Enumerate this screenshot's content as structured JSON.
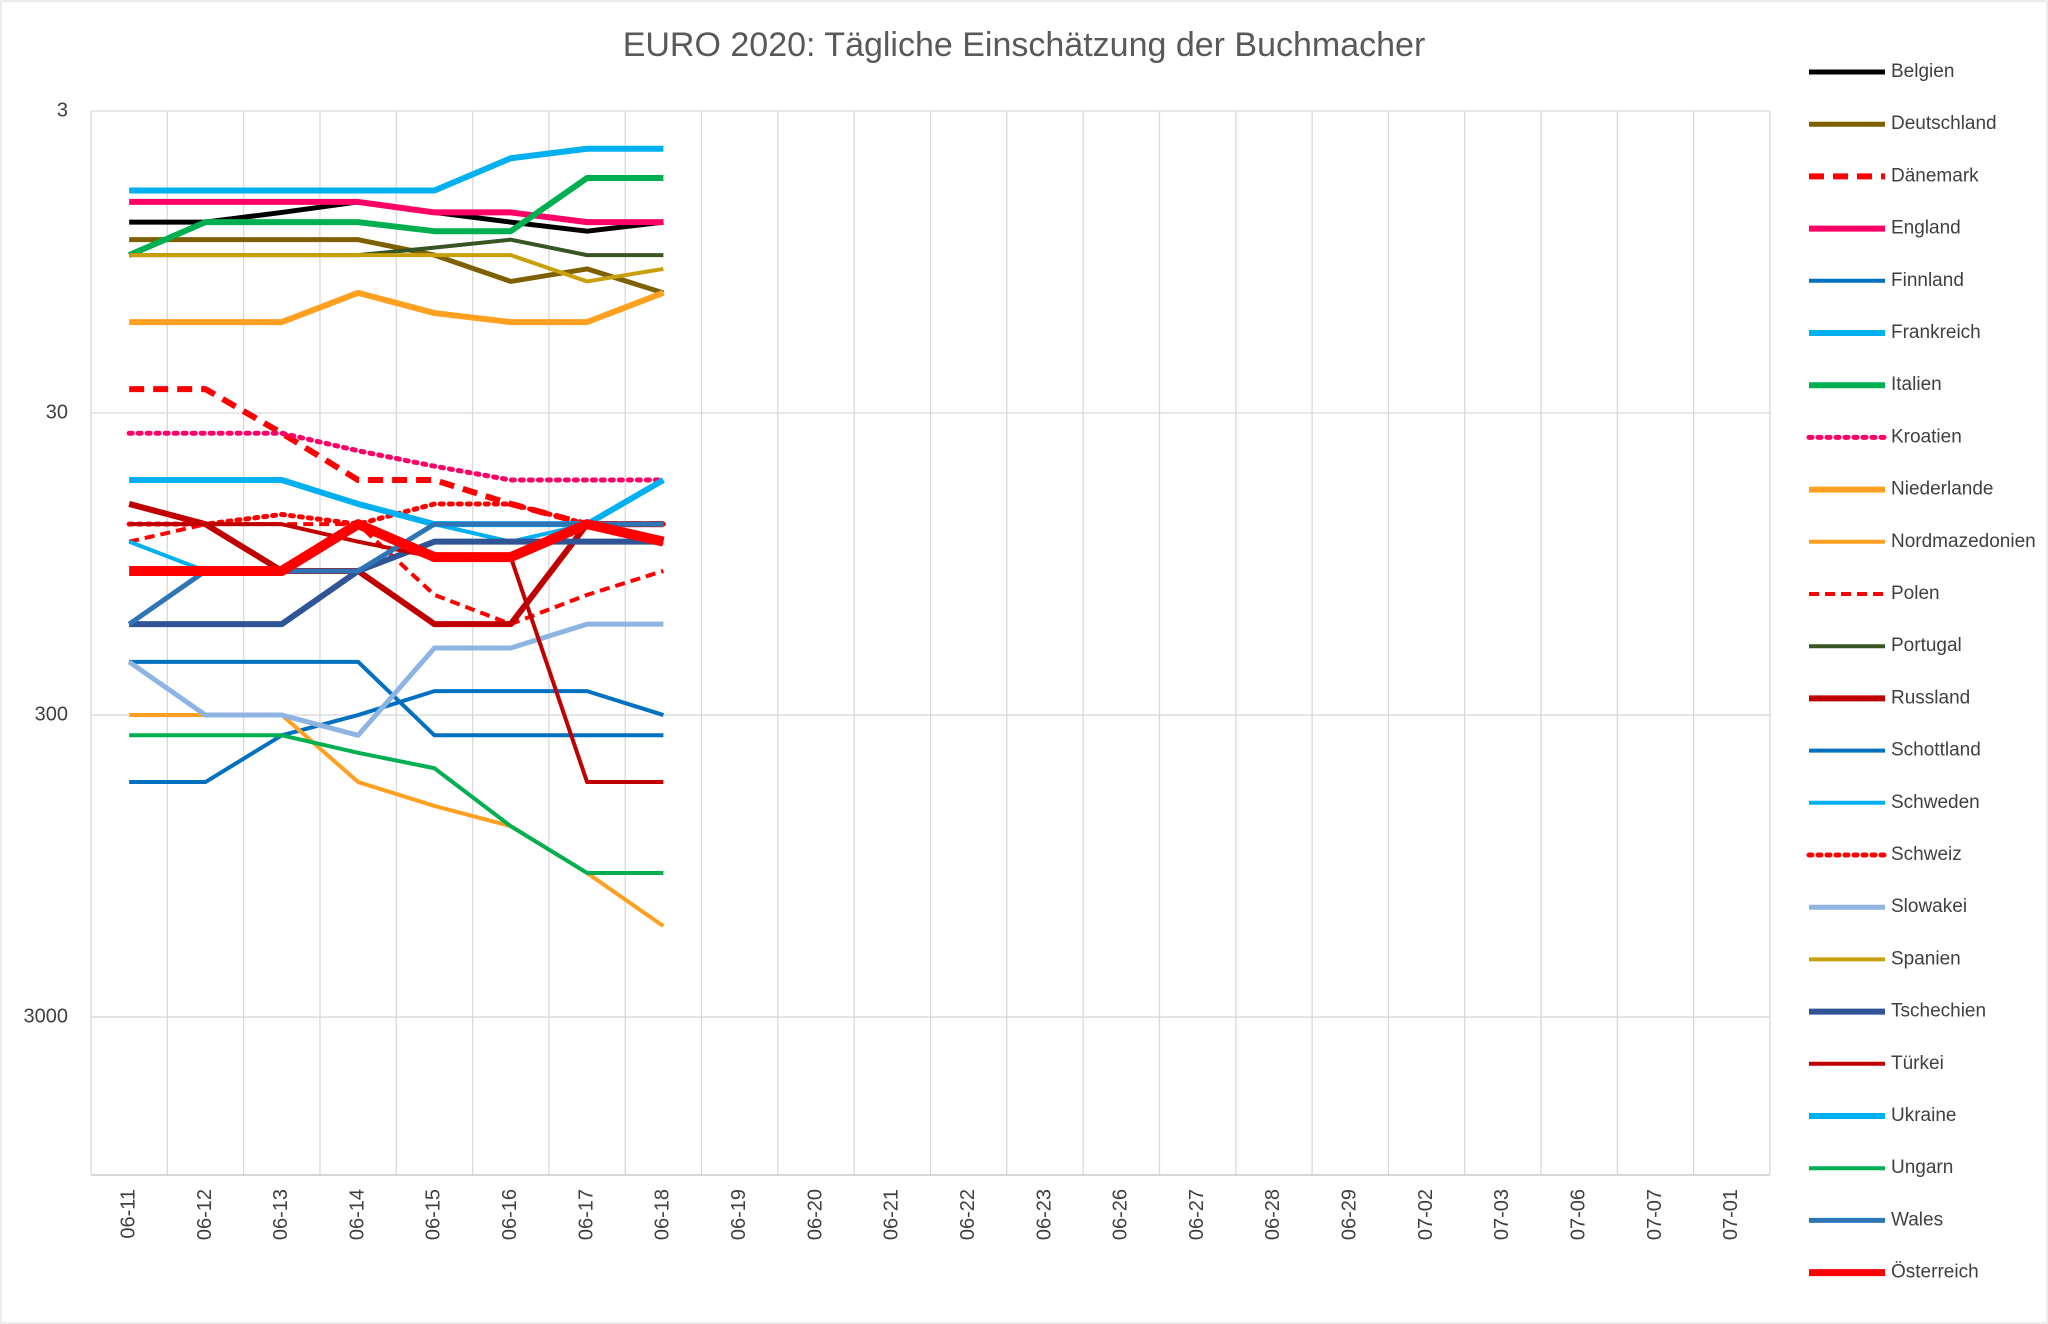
{
  "chart_data": {
    "type": "line",
    "title": "EURO 2020: Tägliche Einschätzung der Buchmacher",
    "categories": [
      "06-11",
      "06-12",
      "06-13",
      "06-14",
      "06-15",
      "06-16",
      "06-17",
      "06-18",
      "06-19",
      "06-20",
      "06-21",
      "06-22",
      "06-23",
      "06-26",
      "06-27",
      "06-28",
      "06-29",
      "07-02",
      "07-03",
      "07-06",
      "07-07",
      "07-01"
    ],
    "ylim": [
      3,
      10000
    ],
    "yticks": [
      3,
      30,
      300,
      3000
    ],
    "log_scale": true,
    "y_reversed": true,
    "grid": true,
    "legend": "right",
    "series": [
      {
        "name": "Belgien",
        "color": "#000000",
        "dash": "solid",
        "linewidth": 5,
        "values": [
          7,
          7,
          6.5,
          6,
          6.5,
          7,
          7.5,
          7,
          null,
          null,
          null,
          null,
          null,
          null,
          null,
          null,
          null,
          null,
          null,
          null,
          null,
          null
        ]
      },
      {
        "name": "Deutschland",
        "color": "#7f6000",
        "dash": "solid",
        "linewidth": 5,
        "values": [
          8,
          8,
          8,
          8,
          9,
          11,
          10,
          12,
          null,
          null,
          null,
          null,
          null,
          null,
          null,
          null,
          null,
          null,
          null,
          null,
          null,
          null
        ]
      },
      {
        "name": "Dänemark",
        "color": "#ff0000",
        "dash": "dashed",
        "linewidth": 6,
        "values": [
          25,
          25,
          35,
          50,
          50,
          60,
          70,
          70,
          null,
          null,
          null,
          null,
          null,
          null,
          null,
          null,
          null,
          null,
          null,
          null,
          null,
          null
        ]
      },
      {
        "name": "England",
        "color": "#ff0066",
        "dash": "solid",
        "linewidth": 6,
        "values": [
          6,
          6,
          6,
          6,
          6.5,
          6.5,
          7,
          7,
          null,
          null,
          null,
          null,
          null,
          null,
          null,
          null,
          null,
          null,
          null,
          null,
          null,
          null
        ]
      },
      {
        "name": "Finnland",
        "color": "#0070c0",
        "dash": "solid",
        "linewidth": 4,
        "values": [
          500,
          500,
          350,
          300,
          250,
          250,
          250,
          300,
          null,
          null,
          null,
          null,
          null,
          null,
          null,
          null,
          null,
          null,
          null,
          null,
          null,
          null
        ]
      },
      {
        "name": "Frankreich",
        "color": "#00b0f0",
        "dash": "solid",
        "linewidth": 6,
        "values": [
          5.5,
          5.5,
          5.5,
          5.5,
          5.5,
          4.3,
          4,
          4,
          null,
          null,
          null,
          null,
          null,
          null,
          null,
          null,
          null,
          null,
          null,
          null,
          null,
          null
        ]
      },
      {
        "name": "Italien",
        "color": "#00b050",
        "dash": "solid",
        "linewidth": 6,
        "values": [
          9,
          7,
          7,
          7,
          7.5,
          7.5,
          5,
          5,
          null,
          null,
          null,
          null,
          null,
          null,
          null,
          null,
          null,
          null,
          null,
          null,
          null,
          null
        ]
      },
      {
        "name": "Kroatien",
        "color": "#ff0066",
        "dash": "dotted",
        "linewidth": 5,
        "values": [
          35,
          35,
          35,
          40,
          45,
          50,
          50,
          50,
          null,
          null,
          null,
          null,
          null,
          null,
          null,
          null,
          null,
          null,
          null,
          null,
          null,
          null
        ]
      },
      {
        "name": "Niederlande",
        "color": "#ffa020",
        "dash": "solid",
        "linewidth": 6,
        "values": [
          15,
          15,
          15,
          12,
          14,
          15,
          15,
          12,
          null,
          null,
          null,
          null,
          null,
          null,
          null,
          null,
          null,
          null,
          null,
          null,
          null,
          null
        ]
      },
      {
        "name": "Nordmazedonien",
        "color": "#ffa020",
        "dash": "solid",
        "linewidth": 4,
        "values": [
          300,
          300,
          300,
          500,
          600,
          700,
          1000,
          1500,
          null,
          null,
          null,
          null,
          null,
          null,
          null,
          null,
          null,
          null,
          null,
          null,
          null,
          null
        ]
      },
      {
        "name": "Polen",
        "color": "#ff0000",
        "dash": "dashed",
        "linewidth": 4,
        "values": [
          80,
          70,
          70,
          70,
          120,
          150,
          120,
          100,
          null,
          null,
          null,
          null,
          null,
          null,
          null,
          null,
          null,
          null,
          null,
          null,
          null,
          null
        ]
      },
      {
        "name": "Portugal",
        "color": "#375623",
        "dash": "solid",
        "linewidth": 4,
        "values": [
          9,
          9,
          9,
          9,
          8.5,
          8,
          9,
          9,
          null,
          null,
          null,
          null,
          null,
          null,
          null,
          null,
          null,
          null,
          null,
          null,
          null,
          null
        ]
      },
      {
        "name": "Russland",
        "color": "#c00000",
        "dash": "solid",
        "linewidth": 6,
        "values": [
          60,
          70,
          100,
          100,
          150,
          150,
          70,
          70,
          null,
          null,
          null,
          null,
          null,
          null,
          null,
          null,
          null,
          null,
          null,
          null,
          null,
          null
        ]
      },
      {
        "name": "Schottland",
        "color": "#0070c0",
        "dash": "solid",
        "linewidth": 4,
        "values": [
          200,
          200,
          200,
          200,
          350,
          350,
          350,
          350,
          null,
          null,
          null,
          null,
          null,
          null,
          null,
          null,
          null,
          null,
          null,
          null,
          null,
          null
        ]
      },
      {
        "name": "Schweden",
        "color": "#00b0f0",
        "dash": "solid",
        "linewidth": 4,
        "values": [
          80,
          100,
          100,
          100,
          70,
          80,
          70,
          70,
          null,
          null,
          null,
          null,
          null,
          null,
          null,
          null,
          null,
          null,
          null,
          null,
          null,
          null
        ]
      },
      {
        "name": "Schweiz",
        "color": "#ff0000",
        "dash": "dotted",
        "linewidth": 5,
        "values": [
          70,
          70,
          65,
          70,
          60,
          60,
          70,
          70,
          null,
          null,
          null,
          null,
          null,
          null,
          null,
          null,
          null,
          null,
          null,
          null,
          null,
          null
        ]
      },
      {
        "name": "Slowakei",
        "color": "#8db4e2",
        "dash": "solid",
        "linewidth": 5,
        "values": [
          200,
          300,
          300,
          350,
          180,
          180,
          150,
          150,
          null,
          null,
          null,
          null,
          null,
          null,
          null,
          null,
          null,
          null,
          null,
          null,
          null,
          null
        ]
      },
      {
        "name": "Spanien",
        "color": "#c9a00c",
        "dash": "solid",
        "linewidth": 4,
        "values": [
          9,
          9,
          9,
          9,
          9,
          9,
          11,
          10,
          null,
          null,
          null,
          null,
          null,
          null,
          null,
          null,
          null,
          null,
          null,
          null,
          null,
          null
        ]
      },
      {
        "name": "Tschechien",
        "color": "#2f5597",
        "dash": "solid",
        "linewidth": 6,
        "values": [
          150,
          150,
          150,
          100,
          80,
          80,
          80,
          80,
          null,
          null,
          null,
          null,
          null,
          null,
          null,
          null,
          null,
          null,
          null,
          null,
          null,
          null
        ]
      },
      {
        "name": "Türkei",
        "color": "#c00000",
        "dash": "solid",
        "linewidth": 4,
        "values": [
          70,
          70,
          70,
          80,
          90,
          90,
          500,
          500,
          null,
          null,
          null,
          null,
          null,
          null,
          null,
          null,
          null,
          null,
          null,
          null,
          null,
          null
        ]
      },
      {
        "name": "Ukraine",
        "color": "#00b0f0",
        "dash": "solid",
        "linewidth": 6,
        "values": [
          50,
          50,
          50,
          60,
          70,
          70,
          70,
          50,
          null,
          null,
          null,
          null,
          null,
          null,
          null,
          null,
          null,
          null,
          null,
          null,
          null,
          null
        ]
      },
      {
        "name": "Ungarn",
        "color": "#00b050",
        "dash": "solid",
        "linewidth": 4,
        "values": [
          350,
          350,
          350,
          400,
          450,
          700,
          1000,
          1000,
          null,
          null,
          null,
          null,
          null,
          null,
          null,
          null,
          null,
          null,
          null,
          null,
          null,
          null
        ]
      },
      {
        "name": "Wales",
        "color": "#2e75b6",
        "dash": "solid",
        "linewidth": 5,
        "values": [
          150,
          100,
          100,
          100,
          70,
          70,
          70,
          70,
          null,
          null,
          null,
          null,
          null,
          null,
          null,
          null,
          null,
          null,
          null,
          null,
          null,
          null
        ]
      },
      {
        "name": "Österreich",
        "color": "#ff0000",
        "dash": "solid",
        "linewidth": 10,
        "values": [
          100,
          100,
          100,
          70,
          90,
          90,
          70,
          80,
          null,
          null,
          null,
          null,
          null,
          null,
          null,
          null,
          null,
          null,
          null,
          null,
          null,
          null
        ]
      }
    ]
  }
}
